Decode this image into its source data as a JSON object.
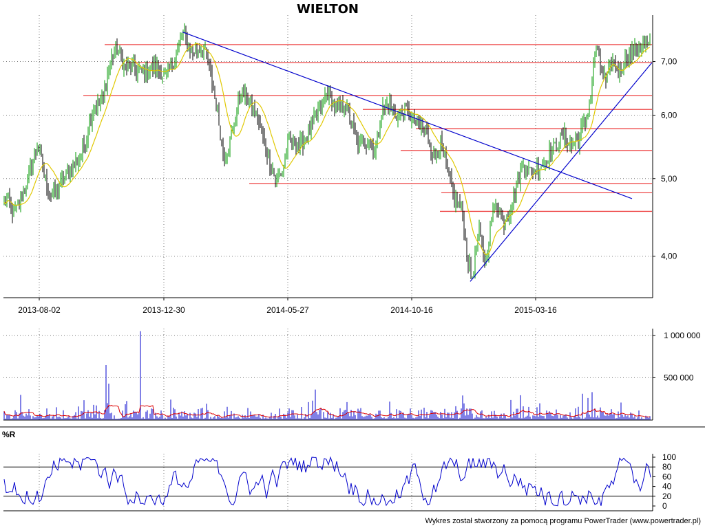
{
  "chart_data": [
    {
      "type": "candlestick",
      "title": "WIELTON",
      "x_tick_labels": [
        "2013-08-02",
        "2013-12-30",
        "2014-05-27",
        "2014-10-16",
        "2015-03-16"
      ],
      "y_tick_labels": [
        "4,00",
        "5,00",
        "6,00",
        "7,00"
      ],
      "y_ticks": [
        4.0,
        5.0,
        6.0,
        7.0
      ],
      "y_scale": "log",
      "ylim": [
        3.55,
        8.0
      ],
      "grid": true,
      "price_series": {
        "name": "close",
        "color": "#000000",
        "approx_points": [
          [
            0,
            4.55
          ],
          [
            10,
            4.7
          ],
          [
            20,
            4.5
          ],
          [
            35,
            4.8
          ],
          [
            45,
            5.2
          ],
          [
            55,
            5.5
          ],
          [
            65,
            5.0
          ],
          [
            75,
            4.75
          ],
          [
            90,
            4.95
          ],
          [
            100,
            5.1
          ],
          [
            115,
            5.3
          ],
          [
            125,
            5.6
          ],
          [
            135,
            6.1
          ],
          [
            150,
            6.3
          ],
          [
            160,
            7.0
          ],
          [
            170,
            7.3
          ],
          [
            180,
            6.9
          ],
          [
            195,
            6.85
          ],
          [
            210,
            6.75
          ],
          [
            225,
            6.9
          ],
          [
            240,
            6.7
          ],
          [
            255,
            7.1
          ],
          [
            265,
            7.6
          ],
          [
            280,
            7.2
          ],
          [
            295,
            7.3
          ],
          [
            305,
            6.8
          ],
          [
            315,
            6.1
          ],
          [
            325,
            5.3
          ],
          [
            335,
            5.6
          ],
          [
            350,
            6.4
          ],
          [
            360,
            6.3
          ],
          [
            375,
            5.9
          ],
          [
            390,
            5.3
          ],
          [
            400,
            5.0
          ],
          [
            410,
            5.1
          ],
          [
            420,
            5.6
          ],
          [
            435,
            5.5
          ],
          [
            445,
            5.6
          ],
          [
            460,
            6.0
          ],
          [
            475,
            6.4
          ],
          [
            490,
            6.1
          ],
          [
            500,
            6.2
          ],
          [
            510,
            5.9
          ],
          [
            520,
            5.5
          ],
          [
            535,
            5.6
          ],
          [
            545,
            5.4
          ],
          [
            555,
            6.1
          ],
          [
            565,
            6.2
          ],
          [
            575,
            6.0
          ],
          [
            590,
            6.1
          ],
          [
            600,
            5.9
          ],
          [
            610,
            5.8
          ],
          [
            620,
            5.7
          ],
          [
            630,
            5.3
          ],
          [
            640,
            5.5
          ],
          [
            650,
            5.1
          ],
          [
            660,
            4.7
          ],
          [
            670,
            4.6
          ],
          [
            678,
            4.05
          ],
          [
            685,
            3.72
          ],
          [
            695,
            4.3
          ],
          [
            705,
            3.9
          ],
          [
            712,
            4.35
          ],
          [
            720,
            4.7
          ],
          [
            730,
            4.4
          ],
          [
            740,
            4.55
          ],
          [
            750,
            4.9
          ],
          [
            760,
            5.2
          ],
          [
            770,
            5.1
          ],
          [
            780,
            5.15
          ],
          [
            790,
            5.25
          ],
          [
            800,
            5.4
          ],
          [
            810,
            5.55
          ],
          [
            820,
            5.65
          ],
          [
            830,
            5.5
          ],
          [
            840,
            5.6
          ],
          [
            850,
            5.9
          ],
          [
            858,
            6.3
          ],
          [
            865,
            7.35
          ],
          [
            872,
            6.9
          ],
          [
            880,
            6.6
          ],
          [
            890,
            7.0
          ],
          [
            900,
            6.75
          ],
          [
            910,
            7.1
          ],
          [
            920,
            7.2
          ],
          [
            930,
            7.35
          ],
          [
            944,
            7.3
          ]
        ]
      },
      "moving_average_series": {
        "name": "MA",
        "color": "#e0c800"
      },
      "resistance_levels": [
        {
          "level": 7.35,
          "x_from": 152,
          "x_to": 947
        },
        {
          "level": 6.98,
          "x_from": 183,
          "x_to": 947
        },
        {
          "level": 6.35,
          "x_from": 121,
          "x_to": 947
        },
        {
          "level": 6.1,
          "x_from": 527,
          "x_to": 947
        },
        {
          "level": 5.77,
          "x_from": 604,
          "x_to": 947
        },
        {
          "level": 5.42,
          "x_from": 582,
          "x_to": 947
        },
        {
          "level": 4.93,
          "x_from": 362,
          "x_to": 947
        },
        {
          "level": 4.8,
          "x_from": 641,
          "x_to": 947
        },
        {
          "level": 4.55,
          "x_from": 639,
          "x_to": 947
        }
      ],
      "trend_lines": [
        {
          "from": [
            265,
            7.62
          ],
          "to": [
            918,
            4.72
          ],
          "color": "#0000cc"
        },
        {
          "from": [
            683,
            3.72
          ],
          "to": [
            947,
            6.98
          ],
          "color": "#0000cc"
        }
      ]
    },
    {
      "type": "bar",
      "title": "",
      "y_tick_labels": [
        "500 000",
        "1 000 000"
      ],
      "y_ticks": [
        500000,
        1000000
      ],
      "ylim": [
        0,
        1080000
      ],
      "series": [
        {
          "name": "volume",
          "color": "#0000cc"
        },
        {
          "name": "volume average",
          "color": "#dd0000"
        }
      ],
      "spikes": [
        {
          "index": 154,
          "value": 650000
        },
        {
          "index": 158,
          "value": 430000
        },
        {
          "index": 204,
          "value": 1050000
        },
        {
          "index": 459,
          "value": 360000
        },
        {
          "index": 861,
          "value": 330000
        }
      ]
    },
    {
      "type": "line",
      "title": "%R",
      "y_tick_labels": [
        "0",
        "20",
        "40",
        "60",
        "80",
        "100"
      ],
      "y_ticks": [
        0,
        20,
        40,
        60,
        80,
        100
      ],
      "ylim": [
        0,
        100
      ],
      "reference_lines": [
        20,
        80
      ],
      "series": [
        {
          "name": "%R",
          "color": "#0000cc"
        }
      ]
    }
  ],
  "footer": {
    "credit": "Wykres został stworzony za pomocą programu PowerTrader (www.powertrader.pl)"
  }
}
